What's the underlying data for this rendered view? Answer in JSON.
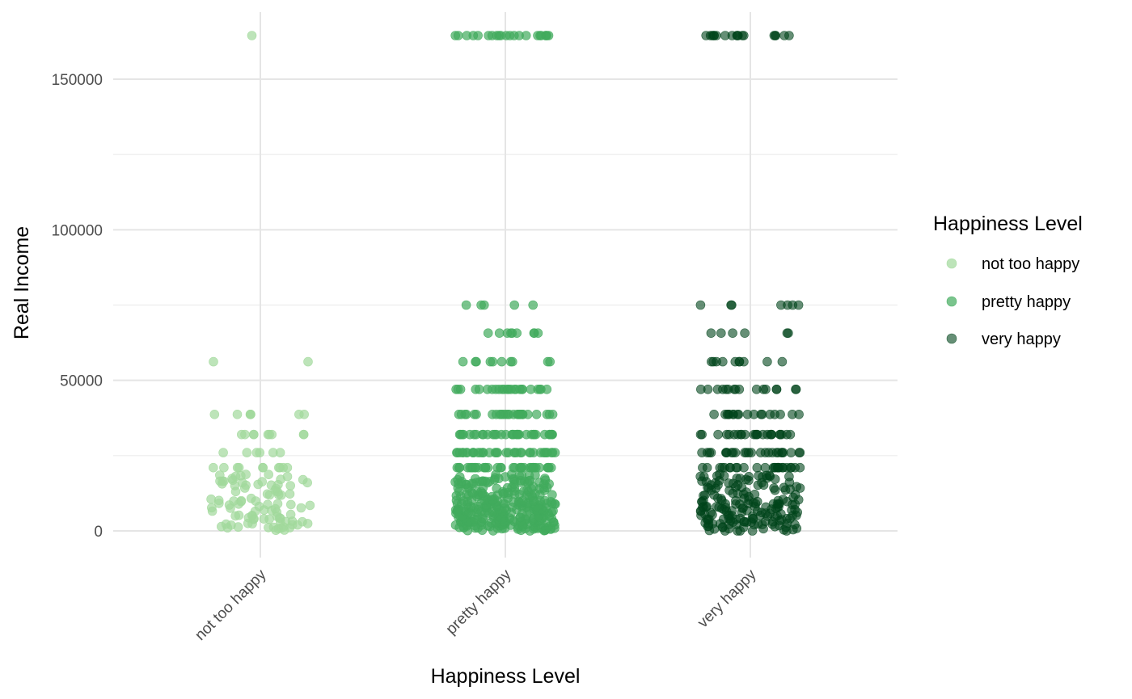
{
  "chart_data": {
    "type": "scatter",
    "subtype": "jitter-strip",
    "title": "",
    "xlabel": "Happiness Level",
    "ylabel": "Real Income",
    "categories": [
      "not too happy",
      "pretty happy",
      "very happy"
    ],
    "y_ticks": [
      0,
      50000,
      100000,
      150000
    ],
    "y_tick_labels": [
      "0",
      "50000",
      "100000",
      "150000"
    ],
    "ylim": [
      -9000,
      172000
    ],
    "grid": true,
    "legend": {
      "title": "Happiness Level",
      "position": "right",
      "entries": [
        "not too happy",
        "pretty happy",
        "very happy"
      ]
    },
    "income_levels": [
      500,
      1500,
      2500,
      3500,
      4500,
      5500,
      6500,
      7500,
      8500,
      9500,
      11000,
      13000,
      15500,
      17500,
      21000,
      26000,
      32000,
      38700,
      47000,
      56200,
      65700,
      75000,
      164500
    ],
    "series": [
      {
        "name": "not too happy",
        "color": "#a1d99b",
        "opacity": 0.7,
        "counts": [
          6,
          7,
          6,
          5,
          6,
          5,
          5,
          5,
          6,
          5,
          6,
          6,
          12,
          12,
          10,
          6,
          9,
          7,
          0,
          2,
          0,
          0,
          1
        ]
      },
      {
        "name": "pretty happy",
        "color": "#41ab5d",
        "opacity": 0.7,
        "counts": [
          20,
          22,
          22,
          20,
          22,
          20,
          20,
          20,
          22,
          20,
          24,
          24,
          26,
          26,
          34,
          36,
          34,
          28,
          24,
          10,
          9,
          5,
          22
        ]
      },
      {
        "name": "very happy",
        "color": "#00441b",
        "opacity": 0.6,
        "counts": [
          12,
          12,
          12,
          11,
          11,
          12,
          11,
          11,
          12,
          11,
          14,
          15,
          18,
          18,
          26,
          26,
          24,
          18,
          16,
          10,
          6,
          7,
          18
        ]
      }
    ]
  },
  "colors": {
    "background": "#ffffff",
    "grid_major": "#e5e5e5",
    "grid_minor": "#efefef",
    "tick_text": "#4d4d4d"
  }
}
